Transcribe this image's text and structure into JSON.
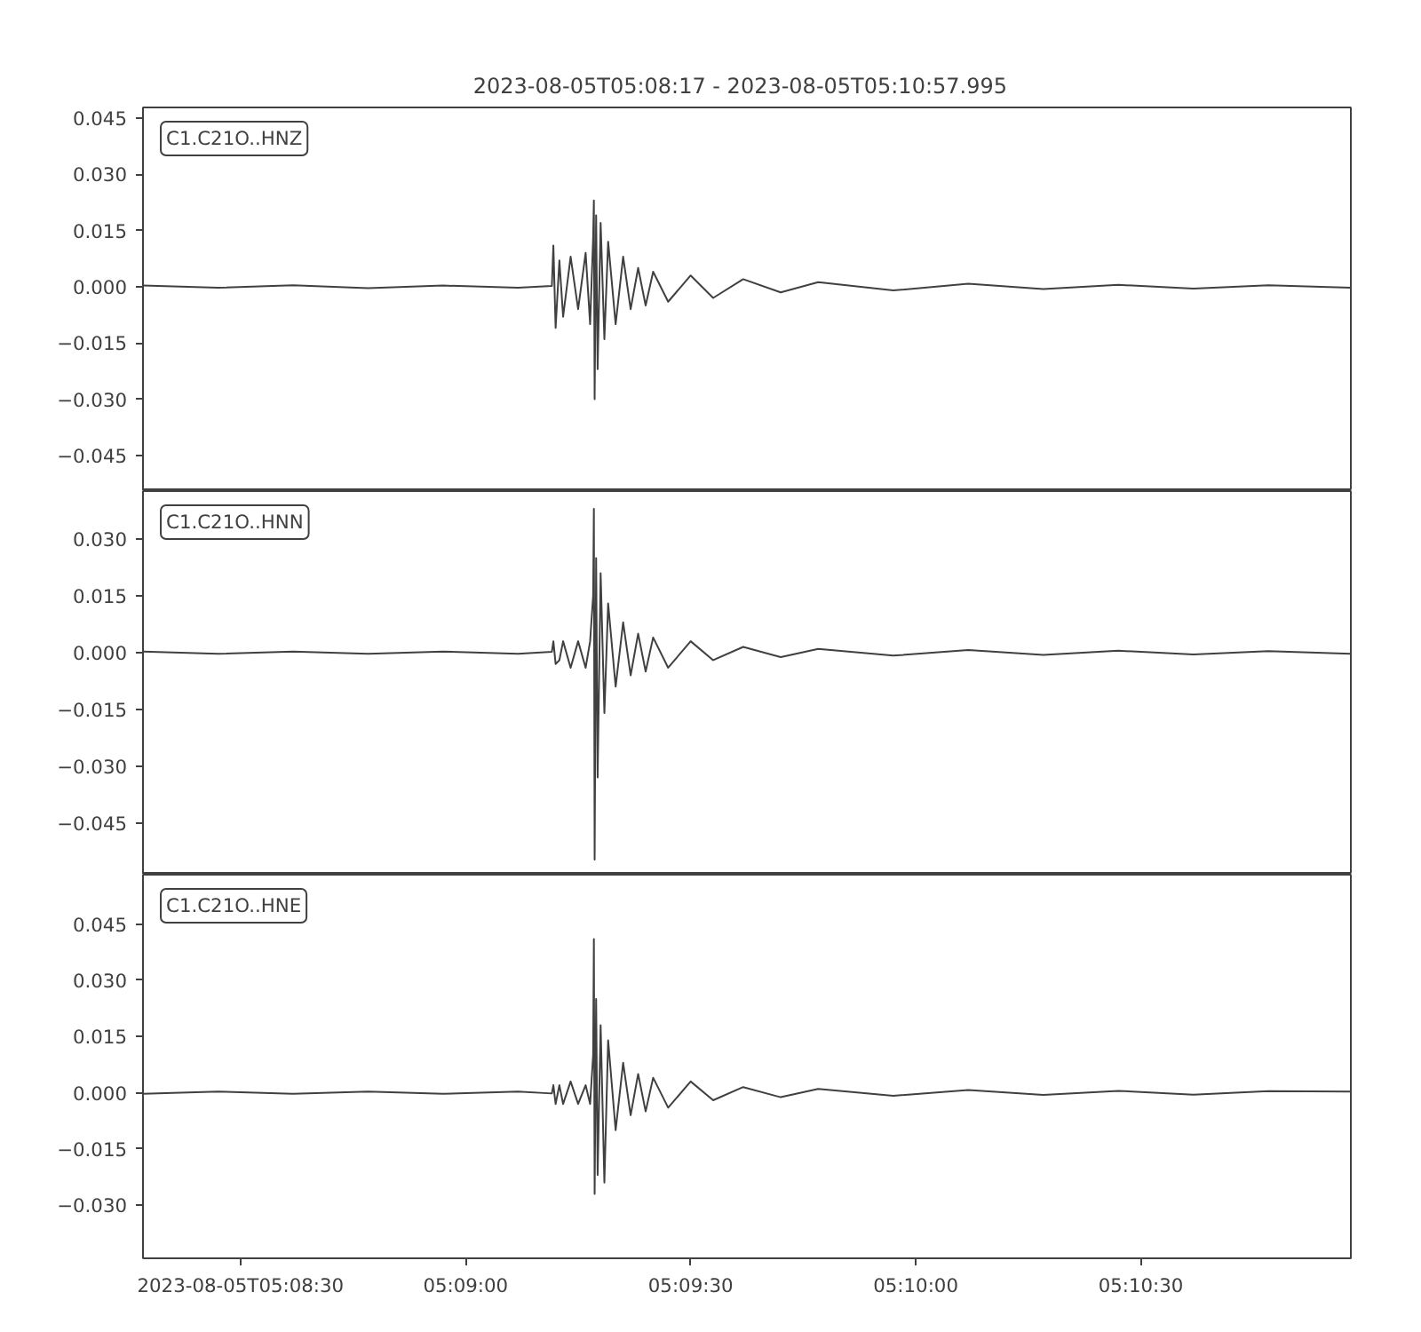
{
  "chart_data": [
    {
      "type": "line",
      "title": "2023-08-05T05:08:17  -  2023-08-05T05:10:57.995",
      "tick_labels": "y",
      "grid": false,
      "legend": false,
      "xlim": [
        "2023-08-05T05:08:17",
        "2023-08-05T05:10:57.995"
      ],
      "ylim": [
        -0.0545,
        0.0478
      ],
      "yticks": [
        {
          "value": -0.045,
          "label": "−0.045"
        },
        {
          "value": -0.03,
          "label": "−0.030"
        },
        {
          "value": -0.015,
          "label": "−0.015"
        },
        {
          "value": 0,
          "label": "0.000"
        },
        {
          "value": 0.015,
          "label": "0.015"
        },
        {
          "value": 0.03,
          "label": "0.030"
        },
        {
          "value": 0.045,
          "label": "0.045"
        }
      ],
      "x": [
        "2023-08-05T05:08:17",
        "2023-08-05T05:08:27",
        "2023-08-05T05:08:37",
        "2023-08-05T05:08:47",
        "2023-08-05T05:08:57",
        "2023-08-05T05:09:07",
        "2023-08-05T05:09:11.5",
        "2023-08-05T05:09:11.7",
        "2023-08-05T05:09:12",
        "2023-08-05T05:09:12.5",
        "2023-08-05T05:09:13",
        "2023-08-05T05:09:14",
        "2023-08-05T05:09:15",
        "2023-08-05T05:09:16",
        "2023-08-05T05:09:16.6",
        "2023-08-05T05:09:17",
        "2023-08-05T05:09:17.1",
        "2023-08-05T05:09:17.2",
        "2023-08-05T05:09:17.4",
        "2023-08-05T05:09:17.6",
        "2023-08-05T05:09:18",
        "2023-08-05T05:09:18.5",
        "2023-08-05T05:09:19",
        "2023-08-05T05:09:20",
        "2023-08-05T05:09:21",
        "2023-08-05T05:09:22",
        "2023-08-05T05:09:23",
        "2023-08-05T05:09:24",
        "2023-08-05T05:09:25",
        "2023-08-05T05:09:27",
        "2023-08-05T05:09:30",
        "2023-08-05T05:09:33",
        "2023-08-05T05:09:37",
        "2023-08-05T05:09:42",
        "2023-08-05T05:09:47",
        "2023-08-05T05:09:57",
        "2023-08-05T05:10:07",
        "2023-08-05T05:10:17",
        "2023-08-05T05:10:27",
        "2023-08-05T05:10:37",
        "2023-08-05T05:10:47",
        "2023-08-05T05:10:57.995"
      ],
      "series": [
        {
          "name": "C1.C21O..HNZ",
          "color": "#404040",
          "values": [
            0.0003,
            -0.0003,
            0.0004,
            -0.0004,
            0.0003,
            -0.0003,
            0.0002,
            0.011,
            -0.011,
            0.007,
            -0.008,
            0.008,
            -0.006,
            0.009,
            -0.01,
            0.013,
            0.023,
            -0.03,
            0.019,
            -0.022,
            0.017,
            -0.014,
            0.012,
            -0.01,
            0.008,
            -0.006,
            0.005,
            -0.005,
            0.004,
            -0.004,
            0.003,
            -0.003,
            0.002,
            -0.0015,
            0.0012,
            -0.001,
            0.0008,
            -0.0006,
            0.0005,
            -0.0005,
            0.0004,
            -0.0003
          ]
        }
      ]
    },
    {
      "type": "line",
      "tick_labels": "y",
      "grid": false,
      "legend": false,
      "xlim": [
        "2023-08-05T05:08:17",
        "2023-08-05T05:10:57.995"
      ],
      "ylim": [
        -0.0587,
        0.0427
      ],
      "yticks": [
        {
          "value": -0.045,
          "label": "−0.045"
        },
        {
          "value": -0.03,
          "label": "−0.030"
        },
        {
          "value": -0.015,
          "label": "−0.015"
        },
        {
          "value": 0,
          "label": "0.000"
        },
        {
          "value": 0.015,
          "label": "0.015"
        },
        {
          "value": 0.03,
          "label": "0.030"
        }
      ],
      "x": [
        "2023-08-05T05:08:17",
        "2023-08-05T05:08:27",
        "2023-08-05T05:08:37",
        "2023-08-05T05:08:47",
        "2023-08-05T05:08:57",
        "2023-08-05T05:09:07",
        "2023-08-05T05:09:11.5",
        "2023-08-05T05:09:11.7",
        "2023-08-05T05:09:12",
        "2023-08-05T05:09:12.5",
        "2023-08-05T05:09:13",
        "2023-08-05T05:09:14",
        "2023-08-05T05:09:15",
        "2023-08-05T05:09:16",
        "2023-08-05T05:09:16.6",
        "2023-08-05T05:09:17",
        "2023-08-05T05:09:17.1",
        "2023-08-05T05:09:17.2",
        "2023-08-05T05:09:17.4",
        "2023-08-05T05:09:17.6",
        "2023-08-05T05:09:18",
        "2023-08-05T05:09:18.5",
        "2023-08-05T05:09:19",
        "2023-08-05T05:09:20",
        "2023-08-05T05:09:21",
        "2023-08-05T05:09:22",
        "2023-08-05T05:09:23",
        "2023-08-05T05:09:24",
        "2023-08-05T05:09:25",
        "2023-08-05T05:09:27",
        "2023-08-05T05:09:30",
        "2023-08-05T05:09:33",
        "2023-08-05T05:09:37",
        "2023-08-05T05:09:42",
        "2023-08-05T05:09:47",
        "2023-08-05T05:09:57",
        "2023-08-05T05:10:07",
        "2023-08-05T05:10:17",
        "2023-08-05T05:10:27",
        "2023-08-05T05:10:37",
        "2023-08-05T05:10:47",
        "2023-08-05T05:10:57.995"
      ],
      "series": [
        {
          "name": "C1.C21O..HNN",
          "color": "#404040",
          "values": [
            0.0003,
            -0.0003,
            0.0003,
            -0.0003,
            0.0003,
            -0.0003,
            0.0002,
            0.003,
            -0.003,
            -0.002,
            0.003,
            -0.004,
            0.003,
            -0.004,
            0.003,
            0.015,
            0.038,
            -0.0547,
            0.025,
            -0.033,
            0.021,
            -0.016,
            0.013,
            -0.009,
            0.008,
            -0.006,
            0.005,
            -0.005,
            0.004,
            -0.004,
            0.003,
            -0.002,
            0.0015,
            -0.0012,
            0.001,
            -0.0008,
            0.0007,
            -0.0006,
            0.0005,
            -0.0005,
            0.0004,
            -0.0003
          ]
        }
      ]
    },
    {
      "type": "line",
      "grid": false,
      "legend": false,
      "xlim": [
        "2023-08-05T05:08:17",
        "2023-08-05T05:10:57.995"
      ],
      "xticks": [
        {
          "value": "2023-08-05T05:08:30",
          "label": "2023-08-05T05:08:30"
        },
        {
          "value": "2023-08-05T05:09:00",
          "label": "05:09:00"
        },
        {
          "value": "2023-08-05T05:09:30",
          "label": "05:09:30"
        },
        {
          "value": "2023-08-05T05:10:00",
          "label": "05:10:00"
        },
        {
          "value": "2023-08-05T05:10:30",
          "label": "05:10:30"
        }
      ],
      "ylim": [
        -0.0442,
        0.0582
      ],
      "yticks": [
        {
          "value": -0.03,
          "label": "−0.030"
        },
        {
          "value": -0.015,
          "label": "−0.015"
        },
        {
          "value": 0,
          "label": "0.000"
        },
        {
          "value": 0.015,
          "label": "0.015"
        },
        {
          "value": 0.03,
          "label": "0.030"
        },
        {
          "value": 0.045,
          "label": "0.045"
        }
      ],
      "x": [
        "2023-08-05T05:08:17",
        "2023-08-05T05:08:27",
        "2023-08-05T05:08:37",
        "2023-08-05T05:08:47",
        "2023-08-05T05:08:57",
        "2023-08-05T05:09:07",
        "2023-08-05T05:09:11.5",
        "2023-08-05T05:09:11.7",
        "2023-08-05T05:09:12",
        "2023-08-05T05:09:12.5",
        "2023-08-05T05:09:13",
        "2023-08-05T05:09:14",
        "2023-08-05T05:09:15",
        "2023-08-05T05:09:16",
        "2023-08-05T05:09:16.6",
        "2023-08-05T05:09:17",
        "2023-08-05T05:09:17.1",
        "2023-08-05T05:09:17.2",
        "2023-08-05T05:09:17.4",
        "2023-08-05T05:09:17.6",
        "2023-08-05T05:09:18",
        "2023-08-05T05:09:18.5",
        "2023-08-05T05:09:19",
        "2023-08-05T05:09:20",
        "2023-08-05T05:09:21",
        "2023-08-05T05:09:22",
        "2023-08-05T05:09:23",
        "2023-08-05T05:09:24",
        "2023-08-05T05:09:25",
        "2023-08-05T05:09:27",
        "2023-08-05T05:09:30",
        "2023-08-05T05:09:33",
        "2023-08-05T05:09:37",
        "2023-08-05T05:09:42",
        "2023-08-05T05:09:47",
        "2023-08-05T05:09:57",
        "2023-08-05T05:10:07",
        "2023-08-05T05:10:17",
        "2023-08-05T05:10:27",
        "2023-08-05T05:10:37",
        "2023-08-05T05:10:47",
        "2023-08-05T05:10:57.995"
      ],
      "series": [
        {
          "name": "C1.C21O..HNE",
          "color": "#404040",
          "values": [
            -0.0003,
            0.0003,
            -0.0003,
            0.0003,
            -0.0003,
            0.0003,
            -0.0002,
            0.002,
            -0.003,
            0.002,
            -0.003,
            0.003,
            -0.003,
            0.002,
            -0.003,
            0.01,
            0.041,
            -0.027,
            0.025,
            -0.022,
            0.018,
            -0.024,
            0.014,
            -0.01,
            0.008,
            -0.006,
            0.005,
            -0.005,
            0.004,
            -0.004,
            0.003,
            -0.002,
            0.0015,
            -0.0012,
            0.001,
            -0.0008,
            0.0007,
            -0.0006,
            0.0005,
            -0.0005,
            0.0004,
            0.0003
          ]
        }
      ]
    }
  ]
}
